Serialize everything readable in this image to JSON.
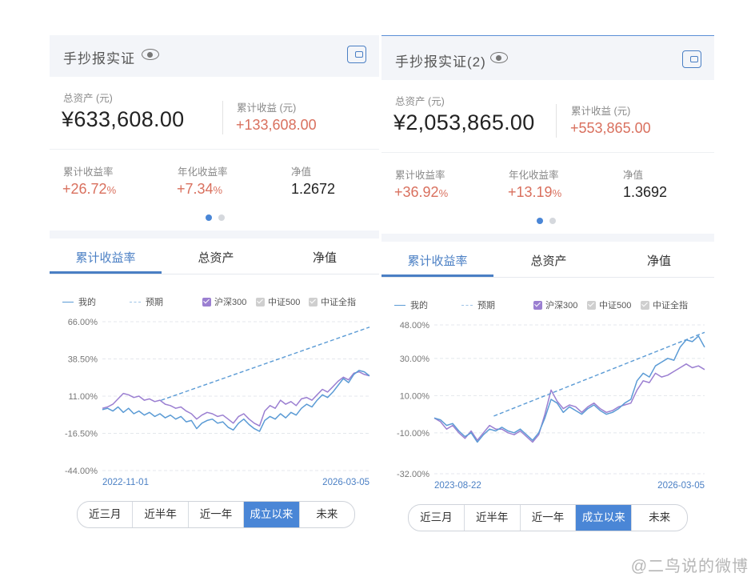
{
  "panels": [
    {
      "title": "手抄报实证",
      "total_assets_label": "总资产 (元)",
      "total_assets": "¥633,608.00",
      "cum_profit_label": "累计收益 (元)",
      "cum_profit": "+133,608.00",
      "cum_rate_label": "累计收益率",
      "cum_rate": "+26.72",
      "annual_rate_label": "年化收益率",
      "annual_rate": "+7.34",
      "pct_sign": "%",
      "nav_label": "净值",
      "nav": "1.2672",
      "tabs": [
        "累计收益率",
        "总资产",
        "净值"
      ],
      "legend": {
        "mine": "我的",
        "expected": "预期",
        "hs300": "沪深300",
        "zz500": "中证500",
        "zzall": "中证全指"
      },
      "yticks": [
        "66.00%",
        "38.50%",
        "11.00%",
        "-16.50%",
        "-44.00%"
      ],
      "date_start": "2022-11-01",
      "date_end": "2026-03-05",
      "ranges": [
        "近三月",
        "近半年",
        "近一年",
        "成立以来",
        "未来"
      ],
      "selected_range": "成立以来"
    },
    {
      "title": "手抄报实证(2)",
      "total_assets_label": "总资产 (元)",
      "total_assets": "¥2,053,865.00",
      "cum_profit_label": "累计收益 (元)",
      "cum_profit": "+553,865.00",
      "cum_rate_label": "累计收益率",
      "cum_rate": "+36.92",
      "annual_rate_label": "年化收益率",
      "annual_rate": "+13.19",
      "pct_sign": "%",
      "nav_label": "净值",
      "nav": "1.3692",
      "tabs": [
        "累计收益率",
        "总资产",
        "净值"
      ],
      "legend": {
        "mine": "我的",
        "expected": "预期",
        "hs300": "沪深300",
        "zz500": "中证500",
        "zzall": "中证全指"
      },
      "yticks": [
        "48.00%",
        "30.00%",
        "10.00%",
        "-10.00%",
        "-32.00%"
      ],
      "date_start": "2023-08-22",
      "date_end": "2026-03-05",
      "ranges": [
        "近三月",
        "近半年",
        "近一年",
        "成立以来",
        "未来"
      ],
      "selected_range": "成立以来"
    }
  ],
  "watermark": "@二鸟说的微博",
  "colors": {
    "accent": "#4a7fc4",
    "mine": "#5b9bd5",
    "hs300": "#9b7fd1",
    "profit": "#d9705e",
    "unchecked": "#cfcfcf"
  },
  "chart_data": [
    {
      "type": "line",
      "ylim": [
        -44,
        66
      ],
      "y_unit": "%",
      "x_start": "2022-11-01",
      "x_end": "2026-03-05",
      "series": [
        {
          "name": "我的",
          "style": "solid",
          "values": [
            1,
            2,
            0,
            3,
            -1,
            2,
            -2,
            0,
            -3,
            -1,
            -4,
            -2,
            -5,
            -3,
            -6,
            -4,
            -8,
            -7,
            -13,
            -9,
            -7,
            -6,
            -9,
            -8,
            -12,
            -14,
            -9,
            -6,
            -10,
            -13,
            -15,
            -7,
            -4,
            -6,
            -2,
            -5,
            -1,
            -3,
            2,
            5,
            3,
            8,
            12,
            10,
            14,
            19,
            24,
            21,
            27,
            30,
            29,
            26
          ]
        },
        {
          "name": "预期",
          "style": "dashed",
          "values": [
            8,
            62
          ]
        },
        {
          "name": "沪深300",
          "style": "solid",
          "values": [
            2,
            3,
            5,
            9,
            13,
            12,
            10,
            11,
            8,
            9,
            7,
            8,
            5,
            4,
            2,
            3,
            0,
            -2,
            -6,
            -3,
            -1,
            -2,
            -4,
            -3,
            -6,
            -9,
            -4,
            -2,
            -6,
            -9,
            -11,
            0,
            4,
            2,
            8,
            5,
            7,
            4,
            9,
            10,
            8,
            12,
            16,
            14,
            18,
            22,
            25,
            23,
            28,
            29,
            27,
            26
          ]
        }
      ]
    },
    {
      "type": "line",
      "ylim": [
        -32,
        48
      ],
      "y_unit": "%",
      "x_start": "2023-08-22",
      "x_end": "2026-03-05",
      "series": [
        {
          "name": "我的",
          "style": "solid",
          "values": [
            -2,
            -3,
            -6,
            -5,
            -9,
            -12,
            -10,
            -15,
            -11,
            -8,
            -9,
            -7,
            -9,
            -10,
            -8,
            -11,
            -14,
            -10,
            -2,
            8,
            6,
            1,
            4,
            2,
            0,
            3,
            5,
            2,
            0,
            1,
            3,
            6,
            8,
            18,
            22,
            20,
            26,
            28,
            30,
            29,
            36,
            40,
            39,
            42,
            36
          ]
        },
        {
          "name": "预期",
          "style": "dashed",
          "values": [
            -1,
            44
          ]
        },
        {
          "name": "沪深300",
          "style": "solid",
          "values": [
            -2,
            -4,
            -8,
            -6,
            -10,
            -13,
            -9,
            -14,
            -10,
            -6,
            -8,
            -8,
            -10,
            -11,
            -9,
            -12,
            -15,
            -11,
            0,
            13,
            7,
            3,
            5,
            4,
            1,
            4,
            6,
            3,
            1,
            2,
            4,
            5,
            6,
            13,
            18,
            17,
            22,
            20,
            21,
            23,
            25,
            27,
            25,
            26,
            24
          ]
        }
      ]
    }
  ]
}
